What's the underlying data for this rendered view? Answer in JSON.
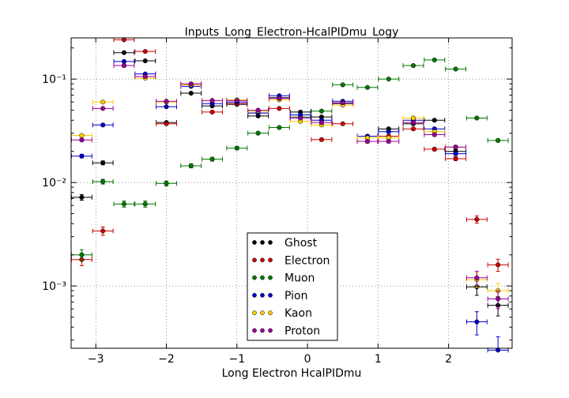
{
  "chart_data": {
    "type": "scatter",
    "title": "Inputs_Long_Electron-HcalPIDmu_Logy",
    "xlabel": "Long Electron HcalPIDmu",
    "ylabel": "",
    "xlim": [
      -3.35,
      2.9
    ],
    "ylim": [
      0.00025,
      0.25
    ],
    "yscale": "log",
    "grid": true,
    "legend_location": "lower center",
    "bin_half_width": 0.145,
    "x_ticks": [
      -3,
      -2,
      -1,
      0,
      1,
      2
    ],
    "x_tick_labels": [
      "−3",
      "−2",
      "−1",
      "0",
      "1",
      "2"
    ],
    "y_ticks": [
      0.001,
      0.01,
      0.1
    ],
    "y_tick_labels": [
      "10⁻³",
      "10⁻²",
      "10⁻¹"
    ],
    "series": [
      {
        "name": "Ghost",
        "color": "#000000",
        "points": [
          [
            -3.2,
            0.0072
          ],
          [
            -2.9,
            0.0155
          ],
          [
            -2.6,
            0.18
          ],
          [
            -2.3,
            0.15
          ],
          [
            -2.0,
            0.038
          ],
          [
            -1.65,
            0.073
          ],
          [
            -1.35,
            0.055
          ],
          [
            -1.0,
            0.057
          ],
          [
            -0.7,
            0.044
          ],
          [
            -0.4,
            0.066
          ],
          [
            -0.1,
            0.048
          ],
          [
            0.2,
            0.043
          ],
          [
            0.5,
            0.058
          ],
          [
            0.85,
            0.028
          ],
          [
            1.15,
            0.033
          ],
          [
            1.5,
            0.037
          ],
          [
            1.8,
            0.04
          ],
          [
            2.1,
            0.02
          ],
          [
            2.4,
            0.00098
          ],
          [
            2.7,
            0.00065
          ]
        ]
      },
      {
        "name": "Electron",
        "color": "#cc0000",
        "points": [
          [
            -3.2,
            0.0018
          ],
          [
            -2.9,
            0.0034
          ],
          [
            -2.6,
            0.24
          ],
          [
            -2.3,
            0.185
          ],
          [
            -2.0,
            0.037
          ],
          [
            -1.65,
            0.088
          ],
          [
            -1.35,
            0.048
          ],
          [
            -1.0,
            0.058
          ],
          [
            -0.7,
            0.047
          ],
          [
            -0.4,
            0.052
          ],
          [
            -0.1,
            0.042
          ],
          [
            0.2,
            0.026
          ],
          [
            0.5,
            0.037
          ],
          [
            0.85,
            0.025
          ],
          [
            1.15,
            0.028
          ],
          [
            1.5,
            0.033
          ],
          [
            1.8,
            0.021
          ],
          [
            2.1,
            0.017
          ],
          [
            2.4,
            0.0044
          ],
          [
            2.7,
            0.0016
          ]
        ]
      },
      {
        "name": "Muon",
        "color": "#007700",
        "points": [
          [
            -3.2,
            0.002
          ],
          [
            -2.9,
            0.0102
          ],
          [
            -2.6,
            0.0062
          ],
          [
            -2.3,
            0.0062
          ],
          [
            -2.0,
            0.0098
          ],
          [
            -1.65,
            0.0145
          ],
          [
            -1.35,
            0.0168
          ],
          [
            -1.0,
            0.0215
          ],
          [
            -0.7,
            0.03
          ],
          [
            -0.4,
            0.034
          ],
          [
            -0.1,
            0.043
          ],
          [
            0.2,
            0.049
          ],
          [
            0.5,
            0.088
          ],
          [
            0.85,
            0.083
          ],
          [
            1.15,
            0.1
          ],
          [
            1.5,
            0.135
          ],
          [
            1.8,
            0.153
          ],
          [
            2.1,
            0.125
          ],
          [
            2.4,
            0.042
          ],
          [
            2.7,
            0.0255
          ]
        ]
      },
      {
        "name": "Pion",
        "color": "#0000cc",
        "points": [
          [
            -3.2,
            0.018
          ],
          [
            -2.9,
            0.036
          ],
          [
            -2.6,
            0.148
          ],
          [
            -2.3,
            0.112
          ],
          [
            -2.0,
            0.054
          ],
          [
            -1.65,
            0.085
          ],
          [
            -1.35,
            0.058
          ],
          [
            -1.0,
            0.06
          ],
          [
            -0.7,
            0.047
          ],
          [
            -0.4,
            0.069
          ],
          [
            -0.1,
            0.045
          ],
          [
            0.2,
            0.04
          ],
          [
            0.5,
            0.061
          ],
          [
            0.85,
            0.028
          ],
          [
            1.15,
            0.031
          ],
          [
            1.5,
            0.04
          ],
          [
            1.8,
            0.033
          ],
          [
            2.1,
            0.019
          ],
          [
            2.4,
            0.00045
          ],
          [
            2.7,
            0.00024
          ]
        ]
      },
      {
        "name": "Kaon",
        "color": "#ffcc00",
        "points": [
          [
            -3.2,
            0.0285
          ],
          [
            -2.9,
            0.06
          ],
          [
            -2.6,
            0.135
          ],
          [
            -2.3,
            0.102
          ],
          [
            -2.0,
            0.06
          ],
          [
            -1.65,
            0.088
          ],
          [
            -1.35,
            0.062
          ],
          [
            -1.0,
            0.063
          ],
          [
            -0.7,
            0.049
          ],
          [
            -0.4,
            0.063
          ],
          [
            -0.1,
            0.039
          ],
          [
            0.2,
            0.036
          ],
          [
            0.5,
            0.056
          ],
          [
            0.85,
            0.027
          ],
          [
            1.15,
            0.027
          ],
          [
            1.5,
            0.042
          ],
          [
            1.8,
            0.031
          ],
          [
            2.1,
            0.022
          ],
          [
            2.4,
            0.00115
          ],
          [
            2.7,
            0.0009
          ]
        ]
      },
      {
        "name": "Proton",
        "color": "#990099",
        "points": [
          [
            -3.2,
            0.0258
          ],
          [
            -2.9,
            0.052
          ],
          [
            -2.6,
            0.135
          ],
          [
            -2.3,
            0.106
          ],
          [
            -2.0,
            0.061
          ],
          [
            -1.65,
            0.09
          ],
          [
            -1.35,
            0.062
          ],
          [
            -1.0,
            0.062
          ],
          [
            -0.7,
            0.05
          ],
          [
            -0.4,
            0.065
          ],
          [
            -0.1,
            0.042
          ],
          [
            0.2,
            0.038
          ],
          [
            0.5,
            0.059
          ],
          [
            0.85,
            0.025
          ],
          [
            1.15,
            0.025
          ],
          [
            1.5,
            0.038
          ],
          [
            1.8,
            0.029
          ],
          [
            2.1,
            0.022
          ],
          [
            2.4,
            0.0012
          ],
          [
            2.7,
            0.00075
          ]
        ]
      }
    ]
  }
}
